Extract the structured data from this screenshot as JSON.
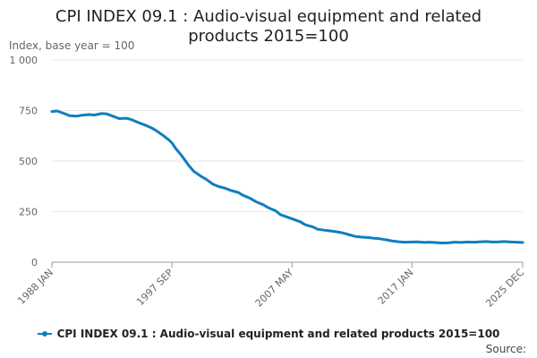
{
  "chart_data": {
    "type": "line",
    "title": "CPI INDEX 09.1 : Audio-visual equipment and related products 2015=100",
    "title_lines": [
      "CPI INDEX 09.1 : Audio-visual equipment and related",
      "products 2015=100"
    ],
    "ylabel": "Index, base year = 100",
    "xlabel": "",
    "ylim": [
      0,
      1000
    ],
    "yticks": [
      {
        "value": 0,
        "label": "0"
      },
      {
        "value": 250,
        "label": "250"
      },
      {
        "value": 500,
        "label": "500"
      },
      {
        "value": 750,
        "label": "750"
      },
      {
        "value": 1000,
        "label": "1 000"
      }
    ],
    "xticks": [
      "1988 JAN",
      "1997 SEP",
      "2007 MAY",
      "2017 JAN",
      "2025 DEC"
    ],
    "x_range": [
      "1988-01",
      "2025-12"
    ],
    "grid": true,
    "legend_position": "bottom",
    "series": [
      {
        "name": "CPI INDEX 09.1 : Audio-visual equipment and related products 2015=100",
        "color": "#0f7ebf",
        "points": [
          [
            "1988-01",
            745
          ],
          [
            "1988-06",
            748
          ],
          [
            "1989-01",
            735
          ],
          [
            "1989-06",
            725
          ],
          [
            "1990-01",
            722
          ],
          [
            "1990-06",
            727
          ],
          [
            "1991-01",
            730
          ],
          [
            "1991-06",
            728
          ],
          [
            "1992-01",
            735
          ],
          [
            "1992-06",
            733
          ],
          [
            "1993-01",
            720
          ],
          [
            "1993-06",
            710
          ],
          [
            "1994-01",
            712
          ],
          [
            "1994-06",
            705
          ],
          [
            "1995-01",
            690
          ],
          [
            "1995-06",
            680
          ],
          [
            "1996-01",
            665
          ],
          [
            "1996-06",
            650
          ],
          [
            "1997-01",
            625
          ],
          [
            "1997-06",
            605
          ],
          [
            "1997-09",
            590
          ],
          [
            "1998-01",
            560
          ],
          [
            "1998-06",
            530
          ],
          [
            "1999-01",
            480
          ],
          [
            "1999-06",
            450
          ],
          [
            "2000-01",
            425
          ],
          [
            "2000-06",
            410
          ],
          [
            "2001-01",
            385
          ],
          [
            "2001-06",
            375
          ],
          [
            "2002-01",
            365
          ],
          [
            "2002-06",
            355
          ],
          [
            "2003-01",
            345
          ],
          [
            "2003-06",
            330
          ],
          [
            "2004-01",
            315
          ],
          [
            "2004-06",
            300
          ],
          [
            "2005-01",
            285
          ],
          [
            "2005-06",
            270
          ],
          [
            "2006-01",
            255
          ],
          [
            "2006-06",
            235
          ],
          [
            "2007-01",
            222
          ],
          [
            "2007-05",
            215
          ],
          [
            "2008-01",
            200
          ],
          [
            "2008-06",
            185
          ],
          [
            "2009-01",
            175
          ],
          [
            "2009-06",
            163
          ],
          [
            "2010-01",
            158
          ],
          [
            "2010-06",
            155
          ],
          [
            "2011-01",
            150
          ],
          [
            "2011-06",
            145
          ],
          [
            "2012-01",
            135
          ],
          [
            "2012-06",
            128
          ],
          [
            "2013-01",
            124
          ],
          [
            "2013-06",
            122
          ],
          [
            "2014-01",
            118
          ],
          [
            "2014-06",
            116
          ],
          [
            "2015-01",
            110
          ],
          [
            "2015-06",
            105
          ],
          [
            "2016-01",
            101
          ],
          [
            "2016-06",
            99
          ],
          [
            "2017-01",
            100
          ],
          [
            "2017-06",
            101
          ],
          [
            "2018-01",
            98
          ],
          [
            "2018-06",
            99
          ],
          [
            "2019-01",
            97
          ],
          [
            "2019-06",
            95
          ],
          [
            "2020-01",
            96
          ],
          [
            "2020-06",
            99
          ],
          [
            "2021-01",
            98
          ],
          [
            "2021-06",
            100
          ],
          [
            "2022-01",
            99
          ],
          [
            "2022-06",
            101
          ],
          [
            "2023-01",
            102
          ],
          [
            "2023-06",
            100
          ],
          [
            "2024-01",
            101
          ],
          [
            "2024-06",
            102
          ],
          [
            "2025-01",
            100
          ],
          [
            "2025-06",
            99
          ],
          [
            "2025-12",
            98
          ]
        ]
      }
    ]
  },
  "legend": {
    "label": "CPI INDEX 09.1 : Audio-visual equipment and related products 2015=100"
  },
  "source": {
    "label": "Source:"
  }
}
